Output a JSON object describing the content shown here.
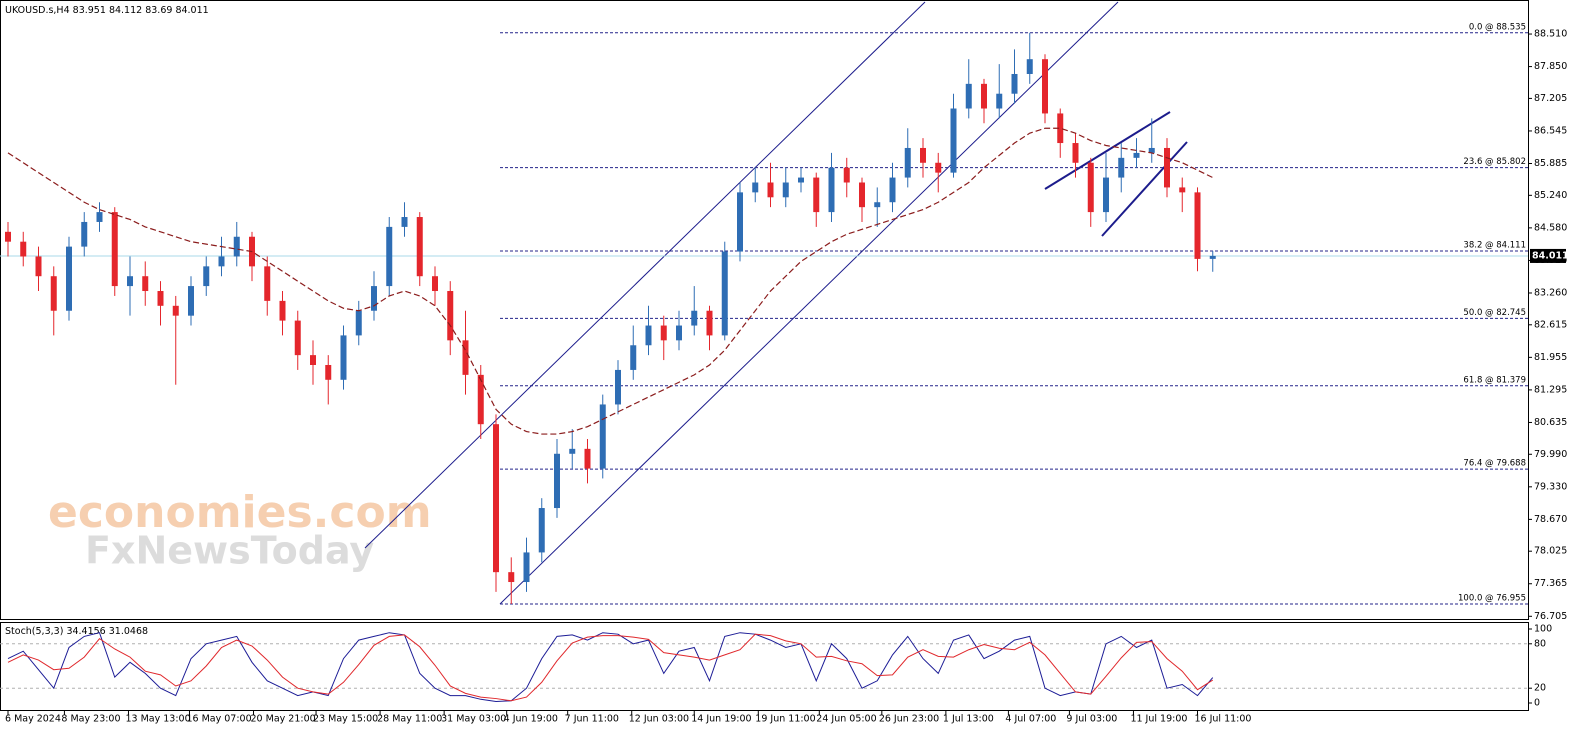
{
  "chart_data": [
    {
      "type": "candlestick",
      "title": "UKOUSD.s,H4",
      "open": [
        84.5,
        84.3,
        84.0,
        83.6,
        82.9,
        84.2,
        84.7,
        84.9,
        83.4,
        83.6,
        83.3,
        83.0,
        82.8,
        83.4,
        83.8,
        84.0,
        84.4,
        83.8,
        83.1,
        82.7,
        82.0,
        81.8,
        81.5,
        82.4,
        82.9,
        83.4,
        84.6,
        84.8,
        83.6,
        83.3,
        82.3,
        81.6,
        80.6,
        77.6,
        77.4,
        78.0,
        78.9,
        80.0,
        80.1,
        79.7,
        81.0,
        81.7,
        82.2,
        82.6,
        82.3,
        82.6,
        82.9,
        82.4,
        84.1,
        85.3,
        85.5,
        85.2,
        85.5,
        85.6,
        84.9,
        85.8,
        85.5,
        85.0,
        85.1,
        85.6,
        86.2,
        85.9,
        85.7,
        87.0,
        87.5,
        87.0,
        87.3,
        87.7,
        88.0,
        86.9,
        86.3,
        85.9,
        84.9,
        85.6,
        86.0,
        86.1,
        86.2,
        85.4,
        85.3,
        83.951
      ],
      "high": [
        84.7,
        84.5,
        84.2,
        83.8,
        84.4,
        84.9,
        85.1,
        85.0,
        84.0,
        83.9,
        83.5,
        83.2,
        83.6,
        84.0,
        84.4,
        84.7,
        84.5,
        84.0,
        83.3,
        82.9,
        82.3,
        82.0,
        82.6,
        83.1,
        83.7,
        84.8,
        85.1,
        84.9,
        83.8,
        83.5,
        82.9,
        81.8,
        80.8,
        77.9,
        78.3,
        79.1,
        80.3,
        80.5,
        80.3,
        81.2,
        81.9,
        82.6,
        83.0,
        82.8,
        82.9,
        83.4,
        83.0,
        84.3,
        85.5,
        85.8,
        85.9,
        85.8,
        85.8,
        85.7,
        86.1,
        86.0,
        85.6,
        85.4,
        85.9,
        86.6,
        86.4,
        86.1,
        87.3,
        88.0,
        87.6,
        87.9,
        88.2,
        88.535,
        88.1,
        87.0,
        86.5,
        86.0,
        86.1,
        86.3,
        86.4,
        86.8,
        86.4,
        85.6,
        85.4,
        84.112
      ],
      "low": [
        84.0,
        83.8,
        83.3,
        82.4,
        82.7,
        84.0,
        84.5,
        83.2,
        82.8,
        83.0,
        82.6,
        81.4,
        82.6,
        83.2,
        83.6,
        83.8,
        83.5,
        82.8,
        82.4,
        81.7,
        81.4,
        81.0,
        81.3,
        82.2,
        82.7,
        83.2,
        84.4,
        83.4,
        83.0,
        82.0,
        81.2,
        80.3,
        77.2,
        76.955,
        77.2,
        77.8,
        78.7,
        79.7,
        79.4,
        79.5,
        80.8,
        81.5,
        82.0,
        81.9,
        82.1,
        82.4,
        82.1,
        82.3,
        83.9,
        85.1,
        85.0,
        85.0,
        85.3,
        84.6,
        84.7,
        85.2,
        84.7,
        84.6,
        84.9,
        85.4,
        85.6,
        85.3,
        85.6,
        86.8,
        86.7,
        86.8,
        87.1,
        87.5,
        86.7,
        86.0,
        85.6,
        84.6,
        84.7,
        85.3,
        85.8,
        85.9,
        85.2,
        84.9,
        83.7,
        83.69
      ],
      "close": [
        84.3,
        84.0,
        83.6,
        82.9,
        84.2,
        84.7,
        84.9,
        83.4,
        83.6,
        83.3,
        83.0,
        82.8,
        83.4,
        83.8,
        84.0,
        84.4,
        83.8,
        83.1,
        82.7,
        82.0,
        81.8,
        81.5,
        82.4,
        82.9,
        83.4,
        84.6,
        84.8,
        83.6,
        83.3,
        82.3,
        81.6,
        80.6,
        77.6,
        77.4,
        78.0,
        78.9,
        80.0,
        80.1,
        79.7,
        81.0,
        81.7,
        82.2,
        82.6,
        82.3,
        82.6,
        82.9,
        82.4,
        84.1,
        85.3,
        85.5,
        85.2,
        85.5,
        85.6,
        84.9,
        85.8,
        85.5,
        85.0,
        85.1,
        85.6,
        86.2,
        85.9,
        85.7,
        87.0,
        87.5,
        87.0,
        87.3,
        87.7,
        88.0,
        86.9,
        86.3,
        85.9,
        84.9,
        85.6,
        86.0,
        86.1,
        86.2,
        85.4,
        85.3,
        83.951,
        84.011
      ],
      "up_color": "#2e6db4",
      "down_color": "#e4262c",
      "ma": {
        "color": "#8b1c1c",
        "values": [
          86.1,
          85.9,
          85.7,
          85.5,
          85.3,
          85.1,
          84.95,
          84.85,
          84.75,
          84.6,
          84.5,
          84.4,
          84.3,
          84.25,
          84.2,
          84.15,
          84.1,
          83.9,
          83.7,
          83.5,
          83.3,
          83.1,
          82.95,
          82.9,
          83.0,
          83.2,
          83.3,
          83.2,
          83.0,
          82.6,
          82.1,
          81.5,
          80.9,
          80.6,
          80.45,
          80.4,
          80.4,
          80.45,
          80.55,
          80.7,
          80.85,
          81.0,
          81.15,
          81.3,
          81.45,
          81.6,
          81.8,
          82.1,
          82.5,
          82.9,
          83.3,
          83.6,
          83.9,
          84.1,
          84.3,
          84.45,
          84.55,
          84.65,
          84.75,
          84.85,
          84.95,
          85.1,
          85.3,
          85.5,
          85.8,
          86.05,
          86.3,
          86.5,
          86.6,
          86.6,
          86.5,
          86.35,
          86.25,
          86.2,
          86.15,
          86.1,
          86.0,
          85.9,
          85.75,
          85.6
        ]
      },
      "fib_levels": [
        {
          "label": "0.0 @ 88.535",
          "value": 88.535
        },
        {
          "label": "23.6 @ 85.802",
          "value": 85.802
        },
        {
          "label": "38.2 @ 84.111",
          "value": 84.111
        },
        {
          "label": "50.0 @ 82.745",
          "value": 82.745
        },
        {
          "label": "61.8 @ 81.379",
          "value": 81.379
        },
        {
          "label": "76.4 @ 79.688",
          "value": 79.688
        },
        {
          "label": "100.0 @ 76.955",
          "value": 76.955
        }
      ],
      "fib_color": "#23238a",
      "ylim": [
        76.63,
        89.2
      ],
      "yticks": [
        {
          "value": 88.51,
          "label": "88.510"
        },
        {
          "value": 87.85,
          "label": "87.850"
        },
        87.205,
        86.545,
        85.885,
        {
          "value": 85.24,
          "label": "85.240"
        },
        {
          "value": 84.58,
          "label": "84.580"
        },
        {
          "value": 83.92,
          "label": "83.920"
        },
        {
          "value": 83.26,
          "label": "83.260"
        },
        82.615,
        81.955,
        81.295,
        80.635,
        {
          "value": 79.99,
          "label": "79.990"
        },
        {
          "value": 79.33,
          "label": "79.330"
        },
        {
          "value": 78.67,
          "label": "78.670"
        },
        78.025,
        77.365,
        76.705
      ],
      "xticks": [
        {
          "value": 0,
          "label": "6 May 2024"
        },
        {
          "value": 3.7,
          "label": "8 May 23:00"
        },
        {
          "value": 7.9,
          "label": "13 May 13:00"
        },
        {
          "value": 11.9,
          "label": "16 May 07:00"
        },
        {
          "value": 16.1,
          "label": "20 May 21:00"
        },
        {
          "value": 20.2,
          "label": "23 May 15:00"
        },
        {
          "value": 24.4,
          "label": "28 May 11:00"
        },
        {
          "value": 28.6,
          "label": "31 May 03:00"
        },
        {
          "value": 32.7,
          "label": "4 Jun 19:00"
        },
        {
          "value": 36.7,
          "label": "7 Jun 11:00"
        },
        {
          "value": 40.9,
          "label": "12 Jun 03:00"
        },
        {
          "value": 45.0,
          "label": "14 Jun 19:00"
        },
        {
          "value": 49.2,
          "label": "19 Jun 11:00"
        },
        {
          "value": 53.2,
          "label": "24 Jun 05:00"
        },
        {
          "value": 57.3,
          "label": "26 Jun 23:00"
        },
        {
          "value": 61.5,
          "label": "1 Jul 13:00"
        },
        {
          "value": 65.6,
          "label": "4 Jul 07:00"
        },
        {
          "value": 69.6,
          "label": "9 Jul 03:00"
        },
        {
          "value": 73.8,
          "label": "11 Jul 19:00"
        },
        {
          "value": 78.0,
          "label": "16 Jul 11:00"
        }
      ]
    },
    {
      "type": "line",
      "title": "Stoch(5,3,3)",
      "series": [
        {
          "color": "#1c1c96",
          "values": [
            60,
            70,
            45,
            20,
            75,
            90,
            95,
            35,
            55,
            40,
            20,
            10,
            60,
            80,
            85,
            90,
            55,
            30,
            20,
            10,
            15,
            10,
            60,
            85,
            90,
            95,
            92,
            40,
            20,
            10,
            10,
            5,
            2,
            3,
            20,
            60,
            90,
            92,
            85,
            95,
            93,
            80,
            85,
            40,
            70,
            75,
            30,
            90,
            95,
            93,
            85,
            75,
            80,
            30,
            80,
            60,
            20,
            30,
            65,
            90,
            60,
            40,
            85,
            92,
            60,
            70,
            85,
            90,
            20,
            10,
            15,
            12,
            80,
            90,
            75,
            85,
            20,
            25,
            10,
            34.4156
          ]
        },
        {
          "color": "#e0282c",
          "values": [
            55,
            65,
            58,
            45,
            47,
            62,
            87,
            73,
            62,
            43,
            38,
            23,
            30,
            50,
            75,
            85,
            77,
            58,
            35,
            20,
            15,
            12,
            28,
            52,
            78,
            90,
            92,
            76,
            51,
            23,
            13,
            8,
            6,
            3,
            8,
            28,
            57,
            81,
            89,
            91,
            91,
            89,
            86,
            68,
            65,
            62,
            58,
            65,
            72,
            93,
            91,
            84,
            80,
            62,
            63,
            57,
            53,
            37,
            38,
            62,
            72,
            63,
            62,
            72,
            79,
            74,
            72,
            82,
            65,
            40,
            15,
            12,
            36,
            61,
            82,
            83,
            60,
            43,
            18,
            31.0468
          ]
        }
      ],
      "levels": [
        80,
        20
      ],
      "ylim": [
        0,
        100
      ],
      "yticks": [
        100,
        80,
        20,
        0
      ]
    }
  ],
  "watermark": [
    "economies.com",
    "FxNewsToday"
  ]
}
